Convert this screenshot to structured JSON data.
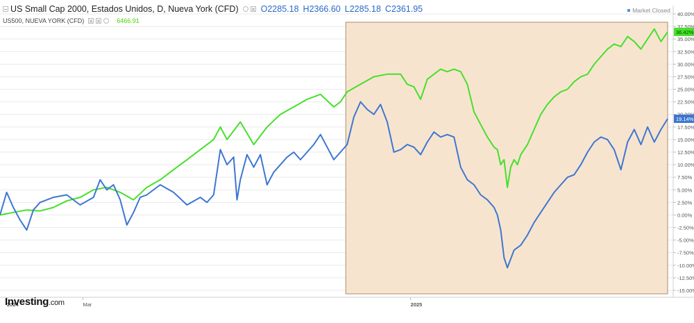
{
  "legend": {
    "instrument_title": "US Small Cap 2000, Estados Unidos, D, Nueva York (CFD)",
    "open_label": "O",
    "open_value": "2285.18",
    "high_label": "H",
    "high_value": "2366.60",
    "low_label": "L",
    "low_value": "2285.18",
    "close_label": "C",
    "close_value": "2361.95",
    "secondary_title": "US500, NUEVA YORK (CFD)",
    "secondary_value": "6466.91"
  },
  "status": {
    "market_closed": "Market Closed"
  },
  "logo": {
    "main": "Investing",
    "suffix": ".com"
  },
  "colors": {
    "us500": "#45e02a",
    "smallcap": "#3d76d1",
    "highlight_fill": "#f7e4cf",
    "highlight_border": "#a98d6e",
    "grid": "#e9e9e9"
  },
  "chart_data": {
    "type": "line",
    "title": "US Small Cap 2000, Estados Unidos, D, Nueva York (CFD)",
    "xlabel": "",
    "ylabel": "",
    "ylim": [
      -15,
      40
    ],
    "y_ticks": [
      "40.00%",
      "37.50%",
      "35.00%",
      "32.50%",
      "30.00%",
      "27.50%",
      "25.00%",
      "22.50%",
      "20.00%",
      "17.50%",
      "15.00%",
      "12.50%",
      "10.00%",
      "7.50%",
      "5.00%",
      "2.50%",
      "0.00%",
      "-2.50%",
      "-5.00%",
      "-7.50%",
      "-10.00%",
      "-12.50%",
      "-15.00%"
    ],
    "x_ticks": [
      {
        "label": "2024",
        "x": 0.0
      },
      {
        "label": "Mar",
        "x": 0.115
      },
      {
        "label": "2025",
        "x": 0.611
      }
    ],
    "grid": "horizontal",
    "highlight_region": {
      "x_start": 0.52,
      "x_end": 1.0
    },
    "last_value_labels": [
      {
        "series": "US500, NUEVA YORK (CFD)",
        "value": 36.42,
        "text": "36.42%"
      },
      {
        "series": "US Small Cap 2000, Estados Unidos, D, Nueva York (CFD)",
        "value": 19.14,
        "text": "19.14%"
      }
    ],
    "series": [
      {
        "name": "US500, NUEVA YORK (CFD)",
        "points": [
          [
            0.0,
            0.0
          ],
          [
            0.02,
            0.5
          ],
          [
            0.04,
            1.0
          ],
          [
            0.06,
            0.8
          ],
          [
            0.08,
            1.5
          ],
          [
            0.1,
            2.8
          ],
          [
            0.12,
            3.5
          ],
          [
            0.14,
            5.0
          ],
          [
            0.16,
            5.5
          ],
          [
            0.18,
            4.5
          ],
          [
            0.2,
            3.0
          ],
          [
            0.22,
            5.5
          ],
          [
            0.24,
            7.0
          ],
          [
            0.26,
            9.0
          ],
          [
            0.28,
            11.0
          ],
          [
            0.3,
            13.0
          ],
          [
            0.32,
            15.0
          ],
          [
            0.33,
            17.5
          ],
          [
            0.34,
            15.0
          ],
          [
            0.36,
            18.5
          ],
          [
            0.38,
            14.0
          ],
          [
            0.4,
            17.5
          ],
          [
            0.42,
            20.0
          ],
          [
            0.44,
            21.5
          ],
          [
            0.46,
            23.0
          ],
          [
            0.48,
            24.0
          ],
          [
            0.5,
            21.5
          ],
          [
            0.51,
            22.5
          ],
          [
            0.52,
            24.5
          ],
          [
            0.54,
            26.0
          ],
          [
            0.56,
            27.5
          ],
          [
            0.58,
            28.0
          ],
          [
            0.6,
            28.0
          ],
          [
            0.61,
            26.0
          ],
          [
            0.62,
            25.5
          ],
          [
            0.63,
            23.0
          ],
          [
            0.64,
            27.0
          ],
          [
            0.65,
            28.0
          ],
          [
            0.66,
            29.0
          ],
          [
            0.67,
            28.5
          ],
          [
            0.68,
            29.0
          ],
          [
            0.69,
            28.5
          ],
          [
            0.7,
            26.0
          ],
          [
            0.71,
            20.5
          ],
          [
            0.72,
            18.0
          ],
          [
            0.73,
            15.5
          ],
          [
            0.74,
            13.5
          ],
          [
            0.745,
            13.0
          ],
          [
            0.75,
            10.0
          ],
          [
            0.755,
            11.0
          ],
          [
            0.76,
            5.5
          ],
          [
            0.765,
            9.5
          ],
          [
            0.77,
            11.0
          ],
          [
            0.775,
            10.0
          ],
          [
            0.78,
            12.0
          ],
          [
            0.79,
            14.0
          ],
          [
            0.8,
            17.0
          ],
          [
            0.81,
            20.0
          ],
          [
            0.82,
            22.0
          ],
          [
            0.83,
            23.5
          ],
          [
            0.84,
            24.5
          ],
          [
            0.85,
            25.0
          ],
          [
            0.86,
            26.5
          ],
          [
            0.87,
            27.5
          ],
          [
            0.88,
            28.0
          ],
          [
            0.89,
            30.0
          ],
          [
            0.9,
            31.5
          ],
          [
            0.91,
            33.0
          ],
          [
            0.92,
            34.0
          ],
          [
            0.93,
            33.5
          ],
          [
            0.94,
            35.5
          ],
          [
            0.95,
            34.5
          ],
          [
            0.96,
            33.0
          ],
          [
            0.97,
            35.0
          ],
          [
            0.98,
            37.0
          ],
          [
            0.99,
            34.5
          ],
          [
            1.0,
            36.42
          ]
        ]
      },
      {
        "name": "US Small Cap 2000, Estados Unidos, D, Nueva York (CFD)",
        "points": [
          [
            0.0,
            0.0
          ],
          [
            0.01,
            4.5
          ],
          [
            0.02,
            1.5
          ],
          [
            0.03,
            -1.0
          ],
          [
            0.04,
            -3.0
          ],
          [
            0.05,
            1.0
          ],
          [
            0.06,
            2.5
          ],
          [
            0.08,
            3.5
          ],
          [
            0.1,
            4.0
          ],
          [
            0.12,
            2.0
          ],
          [
            0.14,
            3.5
          ],
          [
            0.15,
            7.0
          ],
          [
            0.16,
            5.0
          ],
          [
            0.17,
            6.0
          ],
          [
            0.18,
            3.0
          ],
          [
            0.19,
            -2.0
          ],
          [
            0.2,
            0.5
          ],
          [
            0.21,
            3.5
          ],
          [
            0.22,
            4.0
          ],
          [
            0.24,
            6.0
          ],
          [
            0.26,
            4.5
          ],
          [
            0.28,
            2.0
          ],
          [
            0.3,
            3.5
          ],
          [
            0.31,
            2.5
          ],
          [
            0.32,
            4.0
          ],
          [
            0.33,
            13.0
          ],
          [
            0.34,
            10.0
          ],
          [
            0.35,
            11.5
          ],
          [
            0.355,
            3.0
          ],
          [
            0.36,
            7.0
          ],
          [
            0.37,
            12.0
          ],
          [
            0.38,
            9.5
          ],
          [
            0.39,
            12.0
          ],
          [
            0.4,
            6.0
          ],
          [
            0.41,
            8.5
          ],
          [
            0.42,
            10.0
          ],
          [
            0.43,
            11.5
          ],
          [
            0.44,
            12.5
          ],
          [
            0.45,
            11.0
          ],
          [
            0.46,
            12.5
          ],
          [
            0.47,
            14.0
          ],
          [
            0.48,
            16.0
          ],
          [
            0.49,
            13.5
          ],
          [
            0.5,
            11.0
          ],
          [
            0.51,
            12.5
          ],
          [
            0.52,
            14.0
          ],
          [
            0.53,
            19.5
          ],
          [
            0.54,
            22.5
          ],
          [
            0.55,
            21.0
          ],
          [
            0.56,
            20.0
          ],
          [
            0.57,
            22.0
          ],
          [
            0.58,
            18.5
          ],
          [
            0.59,
            12.5
          ],
          [
            0.6,
            13.0
          ],
          [
            0.61,
            14.0
          ],
          [
            0.62,
            13.5
          ],
          [
            0.63,
            12.0
          ],
          [
            0.64,
            14.5
          ],
          [
            0.65,
            16.5
          ],
          [
            0.66,
            15.5
          ],
          [
            0.67,
            16.0
          ],
          [
            0.68,
            15.5
          ],
          [
            0.69,
            9.5
          ],
          [
            0.7,
            7.0
          ],
          [
            0.71,
            6.0
          ],
          [
            0.72,
            4.0
          ],
          [
            0.73,
            3.0
          ],
          [
            0.74,
            1.5
          ],
          [
            0.745,
            0.0
          ],
          [
            0.75,
            -3.0
          ],
          [
            0.755,
            -8.5
          ],
          [
            0.76,
            -10.5
          ],
          [
            0.77,
            -7.0
          ],
          [
            0.78,
            -6.0
          ],
          [
            0.79,
            -4.0
          ],
          [
            0.8,
            -1.5
          ],
          [
            0.81,
            0.5
          ],
          [
            0.82,
            2.5
          ],
          [
            0.83,
            4.5
          ],
          [
            0.84,
            6.0
          ],
          [
            0.85,
            7.5
          ],
          [
            0.86,
            8.0
          ],
          [
            0.87,
            10.0
          ],
          [
            0.88,
            12.5
          ],
          [
            0.89,
            14.5
          ],
          [
            0.9,
            15.5
          ],
          [
            0.91,
            15.0
          ],
          [
            0.92,
            13.0
          ],
          [
            0.93,
            9.0
          ],
          [
            0.94,
            14.5
          ],
          [
            0.95,
            17.0
          ],
          [
            0.96,
            14.0
          ],
          [
            0.97,
            17.5
          ],
          [
            0.98,
            14.5
          ],
          [
            0.99,
            17.0
          ],
          [
            1.0,
            19.14
          ]
        ]
      }
    ]
  }
}
